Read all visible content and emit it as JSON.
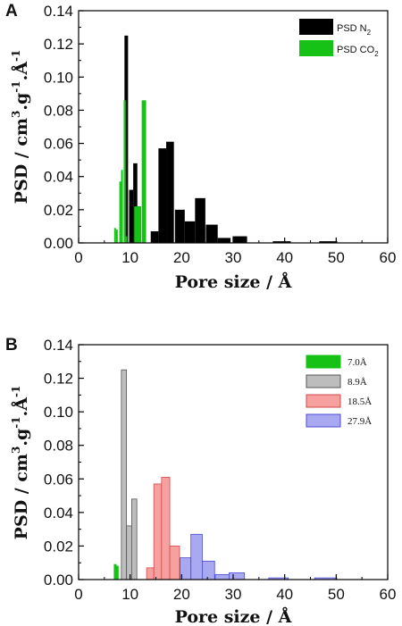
{
  "chart_data": [
    {
      "panel_label": "A",
      "type": "bar",
      "xlabel": "Pore size / Å",
      "ylabel": "PSD / cm3.g-1.Å-1",
      "ylabel_parts": {
        "a": "PSD / cm",
        "sup1": "3",
        "b": ".g",
        "sup2": "-1",
        "c": ".Å",
        "sup3": "-1"
      },
      "xlim": [
        0,
        60
      ],
      "ylim": [
        0,
        0.14
      ],
      "xticks": [
        "0",
        "10",
        "20",
        "30",
        "40",
        "50",
        "60"
      ],
      "yticks": [
        "0.00",
        "0.02",
        "0.04",
        "0.06",
        "0.08",
        "0.10",
        "0.12",
        "0.14"
      ],
      "grid": false,
      "legend": {
        "position": "top-right",
        "entries": [
          {
            "label": "PSD N",
            "sub": "2",
            "color": "#000000"
          },
          {
            "label": "PSD CO",
            "sub": "2",
            "color": "#17c217"
          }
        ]
      },
      "series": [
        {
          "name": "PSD N2",
          "color": "#000000",
          "bars": [
            {
              "x": 8.9,
              "w": 0.7,
              "y": 0.125
            },
            {
              "x": 9.8,
              "w": 0.8,
              "y": 0.032
            },
            {
              "x": 10.6,
              "w": 0.8,
              "y": 0.048
            },
            {
              "x": 11.3,
              "w": 0.8,
              "y": 0.022
            },
            {
              "x": 14.0,
              "w": 1.5,
              "y": 0.007
            },
            {
              "x": 15.5,
              "w": 1.5,
              "y": 0.057
            },
            {
              "x": 17.0,
              "w": 1.5,
              "y": 0.061
            },
            {
              "x": 18.7,
              "w": 1.9,
              "y": 0.02
            },
            {
              "x": 20.6,
              "w": 2.0,
              "y": 0.013
            },
            {
              "x": 22.6,
              "w": 2.0,
              "y": 0.027
            },
            {
              "x": 24.7,
              "w": 2.3,
              "y": 0.011
            },
            {
              "x": 27.0,
              "w": 2.5,
              "y": 0.003
            },
            {
              "x": 29.9,
              "w": 2.8,
              "y": 0.004
            },
            {
              "x": 37.7,
              "w": 3.5,
              "y": 0.001
            },
            {
              "x": 46.7,
              "w": 3.5,
              "y": 0.001
            }
          ]
        },
        {
          "name": "PSD CO2",
          "color": "#17c217",
          "bars": [
            {
              "x": 6.9,
              "w": 0.35,
              "y": 0.009
            },
            {
              "x": 7.25,
              "w": 0.35,
              "y": 0.008
            },
            {
              "x": 7.9,
              "w": 0.35,
              "y": 0.037
            },
            {
              "x": 8.25,
              "w": 0.35,
              "y": 0.044
            },
            {
              "x": 8.75,
              "w": 0.4,
              "y": 0.086
            },
            {
              "x": 9.1,
              "w": 0.35,
              "y": 0.004
            },
            {
              "x": 10.8,
              "w": 0.7,
              "y": 0.022
            },
            {
              "x": 11.4,
              "w": 0.7,
              "y": 0.022
            },
            {
              "x": 12.25,
              "w": 0.85,
              "y": 0.086
            }
          ]
        }
      ]
    },
    {
      "panel_label": "B",
      "type": "bar",
      "xlabel": "Pore size / Å",
      "ylabel": "PSD / cm3.g-1.Å-1",
      "ylabel_parts": {
        "a": "PSD / cm",
        "sup1": "3",
        "b": ".g",
        "sup2": "-1",
        "c": ".Å",
        "sup3": "-1"
      },
      "xlim": [
        0,
        60
      ],
      "ylim": [
        0,
        0.14
      ],
      "xticks": [
        "0",
        "10",
        "20",
        "30",
        "40",
        "50",
        "60"
      ],
      "yticks": [
        "0.00",
        "0.02",
        "0.04",
        "0.06",
        "0.08",
        "0.10",
        "0.12",
        "0.14"
      ],
      "grid": false,
      "legend": {
        "position": "top-right",
        "entries": [
          {
            "label": "7.0Å",
            "color": "#17c217",
            "edge": "#17c217"
          },
          {
            "label": "8.9Å",
            "color": "#bdbdbd",
            "edge": "#555555"
          },
          {
            "label": "18.5Å",
            "color": "#f7a0a0",
            "edge": "#d24a4a"
          },
          {
            "label": "27.9Å",
            "color": "#a9a9f2",
            "edge": "#4a4ad2"
          }
        ]
      },
      "series": [
        {
          "name": "7.0Å",
          "color": "#17c217",
          "edge": "#17c217",
          "bars": [
            {
              "x": 6.9,
              "w": 0.4,
              "y": 0.009
            },
            {
              "x": 7.3,
              "w": 0.4,
              "y": 0.008
            }
          ]
        },
        {
          "name": "8.9Å",
          "color": "#bdbdbd",
          "edge": "#555555",
          "bars": [
            {
              "x": 8.3,
              "w": 1.0,
              "y": 0.125
            },
            {
              "x": 9.3,
              "w": 1.0,
              "y": 0.032
            },
            {
              "x": 10.3,
              "w": 1.0,
              "y": 0.048
            }
          ]
        },
        {
          "name": "18.5Å",
          "color": "#f7a0a0",
          "edge": "#d24a4a",
          "bars": [
            {
              "x": 13.2,
              "w": 1.4,
              "y": 0.007
            },
            {
              "x": 14.6,
              "w": 1.5,
              "y": 0.057
            },
            {
              "x": 16.1,
              "w": 1.6,
              "y": 0.061
            },
            {
              "x": 17.7,
              "w": 1.9,
              "y": 0.02
            }
          ]
        },
        {
          "name": "27.9Å",
          "color": "#a9a9f2",
          "edge": "#4a4ad2",
          "bars": [
            {
              "x": 19.7,
              "w": 2.1,
              "y": 0.013
            },
            {
              "x": 21.8,
              "w": 2.2,
              "y": 0.027
            },
            {
              "x": 24.0,
              "w": 2.4,
              "y": 0.011
            },
            {
              "x": 26.5,
              "w": 2.7,
              "y": 0.003
            },
            {
              "x": 29.2,
              "w": 3.0,
              "y": 0.004
            },
            {
              "x": 36.9,
              "w": 3.8,
              "y": 0.001
            },
            {
              "x": 45.8,
              "w": 4.3,
              "y": 0.001
            }
          ]
        }
      ]
    }
  ]
}
